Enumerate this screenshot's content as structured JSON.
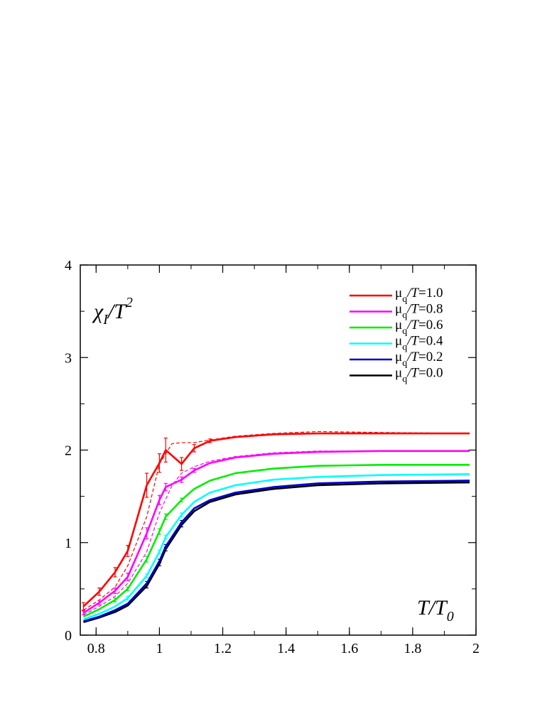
{
  "chart_data": {
    "type": "line",
    "title": "",
    "ylabel": {
      "text": "χ",
      "sub": "I",
      "mid": "/T",
      "sup": "2"
    },
    "xlabel": {
      "text": "T/T",
      "sub": "0"
    },
    "xlim": [
      0.75,
      2.0
    ],
    "ylim": [
      0,
      4
    ],
    "xticks": [
      0.8,
      1.0,
      1.2,
      1.4,
      1.6,
      1.8,
      2.0
    ],
    "xtick_labels": [
      "0.8",
      "1",
      "1.2",
      "1.4",
      "1.6",
      "1.8",
      "2"
    ],
    "yticks": [
      0,
      1,
      2,
      3,
      4
    ],
    "ytick_labels": [
      "0",
      "1",
      "2",
      "3",
      "4"
    ],
    "grid": false,
    "legend_position": "top-right",
    "series": [
      {
        "name": {
          "pre": "μ",
          "sub": "q",
          "post": "/T=1.0"
        },
        "color": "#ff0000",
        "x": [
          0.76,
          0.81,
          0.86,
          0.9,
          0.96,
          1.0,
          1.02,
          1.07,
          1.11,
          1.16,
          1.24,
          1.36,
          1.5,
          1.7,
          1.98
        ],
        "y": [
          0.31,
          0.47,
          0.68,
          0.91,
          1.62,
          1.86,
          2.0,
          1.85,
          2.02,
          2.1,
          2.14,
          2.17,
          2.18,
          2.18,
          2.18
        ],
        "err": [
          0.04,
          0.04,
          0.05,
          0.06,
          0.13,
          0.1,
          0.13,
          0.07,
          0.04,
          0.02,
          0.01,
          0.01,
          0.01,
          0.01,
          0.01
        ],
        "dashed_x": [
          0.76,
          0.81,
          0.86,
          0.9,
          0.96,
          1.0,
          1.04,
          1.07,
          1.11,
          1.16,
          1.24,
          1.36,
          1.5,
          1.7,
          1.98
        ],
        "dashed_y": [
          0.27,
          0.38,
          0.52,
          0.75,
          1.28,
          1.85,
          2.07,
          2.08,
          2.08,
          2.11,
          2.15,
          2.18,
          2.2,
          2.19,
          2.18
        ]
      },
      {
        "name": {
          "pre": "μ",
          "sub": "q",
          "post": "/T=0.8"
        },
        "color": "#ff00ff",
        "x": [
          0.76,
          0.81,
          0.86,
          0.9,
          0.96,
          1.0,
          1.02,
          1.07,
          1.11,
          1.16,
          1.24,
          1.36,
          1.5,
          1.7,
          1.98
        ],
        "y": [
          0.24,
          0.35,
          0.48,
          0.63,
          1.1,
          1.46,
          1.6,
          1.68,
          1.78,
          1.86,
          1.92,
          1.96,
          1.98,
          1.99,
          1.99
        ],
        "err": [
          0.02,
          0.02,
          0.03,
          0.04,
          0.06,
          0.05,
          0.04,
          0.03,
          0.02,
          0.01,
          0.01,
          0.01,
          0.01,
          0.01,
          0.01
        ],
        "dashed_x": [
          0.76,
          0.81,
          0.86,
          0.9,
          0.96,
          1.0,
          1.04,
          1.07,
          1.11,
          1.16,
          1.24,
          1.36,
          1.5,
          1.7,
          1.98
        ],
        "dashed_y": [
          0.22,
          0.31,
          0.42,
          0.56,
          0.9,
          1.32,
          1.62,
          1.75,
          1.82,
          1.88,
          1.93,
          1.97,
          1.99,
          1.99,
          1.99
        ]
      },
      {
        "name": {
          "pre": "μ",
          "sub": "q",
          "post": "/T=0.6"
        },
        "color": "#00ee00",
        "x": [
          0.76,
          0.81,
          0.86,
          0.9,
          0.96,
          1.0,
          1.02,
          1.07,
          1.11,
          1.16,
          1.24,
          1.36,
          1.5,
          1.7,
          1.98
        ],
        "y": [
          0.2,
          0.28,
          0.38,
          0.5,
          0.82,
          1.12,
          1.28,
          1.46,
          1.58,
          1.67,
          1.75,
          1.8,
          1.83,
          1.84,
          1.84
        ],
        "err": [
          0.01,
          0.01,
          0.02,
          0.02,
          0.03,
          0.03,
          0.03,
          0.02,
          0.01,
          0.01,
          0.01,
          0.01,
          0.01,
          0.01,
          0.01
        ]
      },
      {
        "name": {
          "pre": "μ",
          "sub": "q",
          "post": "/T=0.4"
        },
        "color": "#00ffff",
        "x": [
          0.76,
          0.81,
          0.86,
          0.9,
          0.96,
          1.0,
          1.02,
          1.07,
          1.11,
          1.16,
          1.24,
          1.36,
          1.5,
          1.7,
          1.98
        ],
        "y": [
          0.17,
          0.23,
          0.31,
          0.4,
          0.64,
          0.9,
          1.06,
          1.3,
          1.44,
          1.54,
          1.62,
          1.68,
          1.71,
          1.73,
          1.74
        ],
        "err": [
          0.01,
          0.01,
          0.01,
          0.02,
          0.02,
          0.02,
          0.02,
          0.02,
          0.01,
          0.01,
          0.01,
          0.01,
          0.01,
          0.01,
          0.01
        ]
      },
      {
        "name": {
          "pre": "μ",
          "sub": "q",
          "post": "/T=0.2"
        },
        "color": "#0000cc",
        "x": [
          0.76,
          0.81,
          0.86,
          0.9,
          0.96,
          1.0,
          1.02,
          1.07,
          1.11,
          1.16,
          1.24,
          1.36,
          1.5,
          1.7,
          1.98
        ],
        "y": [
          0.15,
          0.2,
          0.27,
          0.34,
          0.56,
          0.8,
          0.96,
          1.22,
          1.37,
          1.46,
          1.54,
          1.6,
          1.64,
          1.66,
          1.67
        ],
        "err": [
          0.01,
          0.01,
          0.01,
          0.01,
          0.02,
          0.02,
          0.02,
          0.02,
          0.01,
          0.01,
          0.01,
          0.01,
          0.01,
          0.01,
          0.01
        ]
      },
      {
        "name": {
          "pre": "μ",
          "sub": "q",
          "post": "/T=0.0"
        },
        "color": "#000000",
        "x": [
          0.76,
          0.81,
          0.86,
          0.9,
          0.96,
          1.0,
          1.02,
          1.07,
          1.11,
          1.16,
          1.24,
          1.36,
          1.5,
          1.7,
          1.98
        ],
        "y": [
          0.14,
          0.19,
          0.25,
          0.32,
          0.53,
          0.77,
          0.93,
          1.19,
          1.34,
          1.44,
          1.52,
          1.58,
          1.62,
          1.64,
          1.65
        ],
        "err": [
          0.01,
          0.01,
          0.01,
          0.01,
          0.02,
          0.02,
          0.02,
          0.02,
          0.01,
          0.01,
          0.01,
          0.01,
          0.01,
          0.01,
          0.01
        ]
      }
    ]
  }
}
